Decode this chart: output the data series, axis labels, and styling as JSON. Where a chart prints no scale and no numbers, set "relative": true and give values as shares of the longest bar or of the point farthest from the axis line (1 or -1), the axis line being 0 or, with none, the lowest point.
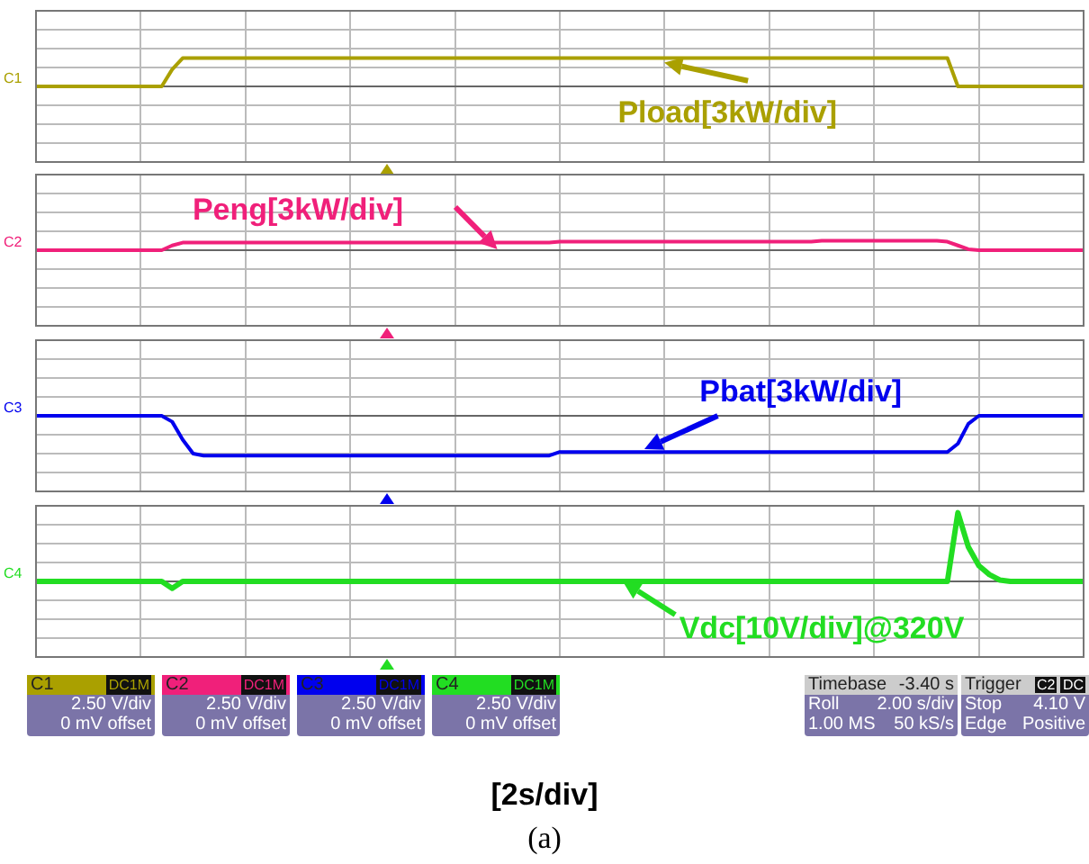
{
  "chart_data": [
    {
      "type": "line",
      "relative": true,
      "grid": true,
      "legend": "right",
      "marker": "none",
      "annotations": [
        "C1"
      ],
      "categories": [
        null,
        null,
        null,
        null,
        null,
        null,
        null,
        null,
        null,
        null,
        null,
        null,
        null,
        null,
        null,
        null,
        null,
        null,
        null,
        null,
        null,
        null,
        null,
        null,
        null,
        null,
        null,
        null,
        null,
        null,
        null,
        null,
        null,
        null,
        null,
        null,
        null,
        null,
        null,
        null,
        null,
        null,
        null,
        null,
        null,
        null,
        null,
        null,
        null,
        null,
        null,
        null,
        null,
        null,
        null,
        null,
        null,
        null,
        null,
        null,
        null,
        null,
        null,
        null,
        null,
        null,
        null,
        null,
        null,
        null,
        null,
        null,
        null,
        null,
        null,
        null,
        null,
        null,
        null,
        null,
        null,
        null,
        null,
        null,
        null,
        null,
        null,
        null,
        null,
        null,
        null,
        null,
        null,
        null,
        null,
        null,
        null,
        null,
        null,
        null,
        null
      ],
      "series": [
        {
          "name": "Pload[3kW/div]",
          "color": "#aaa000",
          "values": [
            0,
            0,
            0,
            0,
            0,
            0,
            0,
            0,
            0,
            0,
            0,
            0,
            0,
            0.6,
            1,
            1,
            1,
            1,
            1,
            1,
            1,
            1,
            1,
            1,
            1,
            1,
            1,
            1,
            1,
            1,
            1,
            1,
            1,
            1,
            1,
            1,
            1,
            1,
            1,
            1,
            1,
            1,
            1,
            1,
            1,
            1,
            1,
            1,
            1,
            1,
            1,
            1,
            1,
            1,
            1,
            1,
            1,
            1,
            1,
            1,
            1,
            1,
            1,
            1,
            1,
            1,
            1,
            1,
            1,
            1,
            1,
            1,
            1,
            1,
            1,
            1,
            1,
            1,
            1,
            1,
            1,
            1,
            1,
            1,
            1,
            1,
            1,
            1,
            0,
            0,
            0,
            0,
            0,
            0,
            0,
            0,
            0,
            0,
            0,
            0,
            0
          ]
        }
      ]
    },
    {
      "type": "line",
      "relative": true,
      "grid": true,
      "legend": "top left",
      "marker": "none",
      "annotations": [
        "C2"
      ],
      "categories": [
        null,
        null,
        null,
        null,
        null,
        null,
        null,
        null,
        null,
        null,
        null,
        null,
        null,
        null,
        null,
        null,
        null,
        null,
        null,
        null,
        null,
        null,
        null,
        null,
        null,
        null,
        null,
        null,
        null,
        null,
        null,
        null,
        null,
        null,
        null,
        null,
        null,
        null,
        null,
        null,
        null,
        null,
        null,
        null,
        null,
        null,
        null,
        null,
        null,
        null,
        null,
        null,
        null,
        null,
        null,
        null,
        null,
        null,
        null,
        null,
        null,
        null,
        null,
        null,
        null,
        null,
        null,
        null,
        null,
        null,
        null,
        null,
        null,
        null,
        null,
        null,
        null,
        null,
        null,
        null,
        null,
        null,
        null,
        null,
        null,
        null,
        null,
        null,
        null,
        null,
        null,
        null,
        null,
        null,
        null,
        null,
        null,
        null,
        null,
        null,
        null
      ],
      "series": [
        {
          "name": "Peng[3kW/div]",
          "color": "#f0207a",
          "values": [
            0,
            0,
            0,
            0,
            0,
            0,
            0,
            0,
            0,
            0,
            0,
            0,
            0,
            0.5,
            0.8,
            0.8,
            0.8,
            0.8,
            0.8,
            0.8,
            0.8,
            0.8,
            0.8,
            0.8,
            0.8,
            0.8,
            0.8,
            0.8,
            0.8,
            0.8,
            0.8,
            0.8,
            0.8,
            0.8,
            0.8,
            0.8,
            0.8,
            0.8,
            0.8,
            0.8,
            0.8,
            0.8,
            0.8,
            0.8,
            0.8,
            0.8,
            0.8,
            0.8,
            0.8,
            0.8,
            0.9,
            0.9,
            0.9,
            0.9,
            0.9,
            0.9,
            0.9,
            0.9,
            0.9,
            0.9,
            0.9,
            0.9,
            0.9,
            0.9,
            0.9,
            0.9,
            0.9,
            0.9,
            0.9,
            0.9,
            0.9,
            0.9,
            0.9,
            0.9,
            0.9,
            1,
            1,
            1,
            1,
            1,
            1,
            1,
            1,
            1,
            1,
            1,
            1,
            0.9,
            0.5,
            0.1,
            0,
            0,
            0,
            0,
            0,
            0,
            0,
            0,
            0,
            0,
            0
          ]
        }
      ]
    },
    {
      "type": "line",
      "relative": true,
      "grid": true,
      "legend": "top right",
      "marker": "none",
      "annotations": [
        "C3"
      ],
      "categories": [
        null,
        null,
        null,
        null,
        null,
        null,
        null,
        null,
        null,
        null,
        null,
        null,
        null,
        null,
        null,
        null,
        null,
        null,
        null,
        null,
        null,
        null,
        null,
        null,
        null,
        null,
        null,
        null,
        null,
        null,
        null,
        null,
        null,
        null,
        null,
        null,
        null,
        null,
        null,
        null,
        null,
        null,
        null,
        null,
        null,
        null,
        null,
        null,
        null,
        null,
        null,
        null,
        null,
        null,
        null,
        null,
        null,
        null,
        null,
        null,
        null,
        null,
        null,
        null,
        null,
        null,
        null,
        null,
        null,
        null,
        null,
        null,
        null,
        null,
        null,
        null,
        null,
        null,
        null,
        null,
        null,
        null,
        null,
        null,
        null,
        null,
        null,
        null,
        null,
        null,
        null,
        null,
        null,
        null,
        null,
        null,
        null,
        null,
        null,
        null,
        null
      ],
      "series": [
        {
          "name": "Pbat[3kW/div]",
          "color": "#0000ee",
          "values": [
            0,
            0,
            0,
            0,
            0,
            0,
            0,
            0,
            0,
            0,
            0,
            0,
            0,
            -0.15,
            -0.6,
            -0.95,
            -1,
            -1,
            -1,
            -1,
            -1,
            -1,
            -1,
            -1,
            -1,
            -1,
            -1,
            -1,
            -1,
            -1,
            -1,
            -1,
            -1,
            -1,
            -1,
            -1,
            -1,
            -1,
            -1,
            -1,
            -1,
            -1,
            -1,
            -1,
            -1,
            -1,
            -1,
            -1,
            -1,
            -1,
            -0.91,
            -0.91,
            -0.91,
            -0.91,
            -0.91,
            -0.91,
            -0.91,
            -0.91,
            -0.91,
            -0.91,
            -0.91,
            -0.91,
            -0.91,
            -0.91,
            -0.91,
            -0.91,
            -0.91,
            -0.91,
            -0.91,
            -0.91,
            -0.91,
            -0.91,
            -0.91,
            -0.91,
            -0.91,
            -0.91,
            -0.91,
            -0.91,
            -0.91,
            -0.91,
            -0.91,
            -0.91,
            -0.91,
            -0.91,
            -0.91,
            -0.91,
            -0.91,
            -0.91,
            -0.7,
            -0.2,
            0,
            0,
            0,
            0,
            0,
            0,
            0,
            0,
            0,
            0,
            0
          ]
        }
      ]
    },
    {
      "type": "line",
      "relative": true,
      "grid": true,
      "legend": "bottom right",
      "marker": "none",
      "xlabel": "[2s/div]",
      "annotations": [
        "C4"
      ],
      "categories": [
        null,
        null,
        null,
        null,
        null,
        null,
        null,
        null,
        null,
        null,
        null,
        null,
        null,
        null,
        null,
        null,
        null,
        null,
        null,
        null,
        null,
        null,
        null,
        null,
        null,
        null,
        null,
        null,
        null,
        null,
        null,
        null,
        null,
        null,
        null,
        null,
        null,
        null,
        null,
        null,
        null,
        null,
        null,
        null,
        null,
        null,
        null,
        null,
        null,
        null,
        null,
        null,
        null,
        null,
        null,
        null,
        null,
        null,
        null,
        null,
        null,
        null,
        null,
        null,
        null,
        null,
        null,
        null,
        null,
        null,
        null,
        null,
        null,
        null,
        null,
        null,
        null,
        null,
        null,
        null,
        null,
        null,
        null,
        null,
        null,
        null,
        null,
        null,
        null,
        null,
        null,
        null,
        null,
        null,
        null,
        null,
        null,
        null,
        null,
        null,
        null
      ],
      "series": [
        {
          "name": "Vdc[10V/div]@320V",
          "color": "#22dd22",
          "values": [
            0,
            0,
            0,
            0,
            0,
            0,
            0,
            0,
            0,
            0,
            0,
            0,
            0,
            -0.1,
            0,
            0,
            0,
            0,
            0,
            0,
            0,
            0,
            0,
            0,
            0,
            0,
            0,
            0,
            0,
            0,
            0,
            0,
            0,
            0,
            0,
            0,
            0,
            0,
            0,
            0,
            0,
            0,
            0,
            0,
            0,
            0,
            0,
            0,
            0,
            0,
            0,
            0,
            0,
            0,
            0,
            0,
            0,
            0,
            0,
            0,
            0,
            0,
            0,
            0,
            0,
            0,
            0,
            0,
            0,
            0,
            0,
            0,
            0,
            0,
            0,
            0,
            0,
            0,
            0,
            0,
            0,
            0,
            0,
            0,
            0,
            0,
            0,
            0,
            1,
            0.5,
            0.23,
            0.1,
            0.02,
            0,
            0,
            0,
            0,
            0,
            0,
            0,
            0
          ]
        }
      ]
    },
    {
      "type": "other",
      "annotations": [
        "C1",
        "DC1M",
        "2.50 V/div",
        "0 mV offset",
        "C2",
        "DC1M",
        "2.50 V/div",
        "0 mV offset",
        "C3",
        "DC1M",
        "2.50 V/div",
        "0 mV offset",
        "C4",
        "DC1M",
        "2.50 V/div",
        "0 mV offset",
        "Timebase",
        "-3.40 s",
        "Roll",
        "2.00 s/div",
        "1.00 MS",
        "50 kS/s",
        "Trigger",
        "C2",
        "DC",
        "Stop",
        "4.10 V",
        "Edge",
        "Positive",
        "(a)"
      ]
    }
  ]
}
